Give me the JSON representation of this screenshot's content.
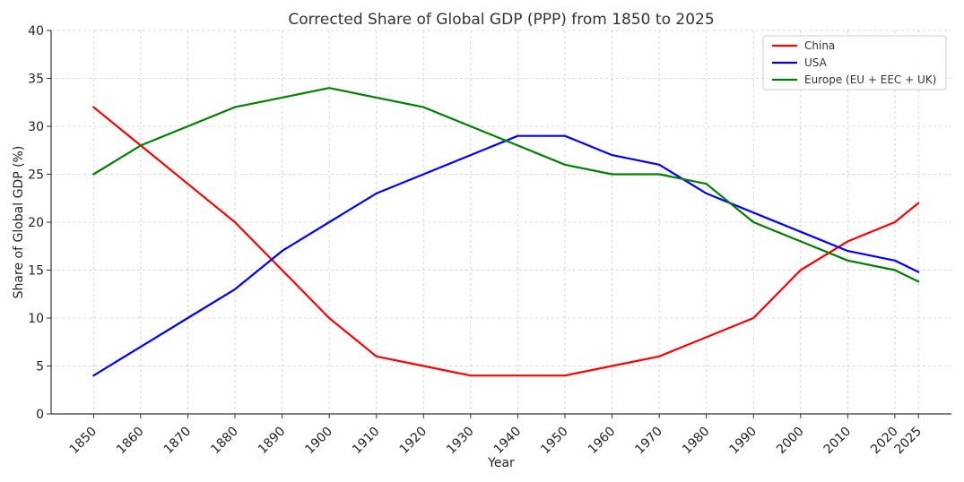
{
  "chart_data": {
    "type": "line",
    "title": "Corrected Share of Global GDP (PPP) from 1850 to 2025",
    "xlabel": "Year",
    "ylabel": "Share of Global GDP (%)",
    "x": [
      1850,
      1860,
      1870,
      1880,
      1890,
      1900,
      1910,
      1920,
      1930,
      1940,
      1950,
      1960,
      1970,
      1980,
      1990,
      2000,
      2010,
      2020,
      2025
    ],
    "x_tick_labels": [
      "1850",
      "1860",
      "1870",
      "1880",
      "1890",
      "1900",
      "1910",
      "1920",
      "1930",
      "1940",
      "1950",
      "1960",
      "1970",
      "1980",
      "1990",
      "2000",
      "2010",
      "2020",
      "2025"
    ],
    "ylim": [
      0,
      40
    ],
    "y_ticks": [
      0,
      5,
      10,
      15,
      20,
      25,
      30,
      35,
      40
    ],
    "grid": true,
    "legend_position": "top-right",
    "series": [
      {
        "name": "China",
        "color": "#ff0000",
        "values": [
          32,
          28,
          24,
          20,
          15,
          10,
          6,
          5,
          4,
          4,
          4,
          5,
          6,
          8,
          10,
          15,
          18,
          20,
          22
        ]
      },
      {
        "name": "USA",
        "color": "#0000ff",
        "values": [
          4,
          7,
          10,
          13,
          17,
          20,
          23,
          25,
          27,
          29,
          29,
          27,
          26,
          23,
          21,
          19,
          17,
          16,
          14.8
        ]
      },
      {
        "name": "Europe (EU + EEC + UK)",
        "color": "#008000",
        "values": [
          25,
          28,
          30,
          32,
          33,
          34,
          33,
          32,
          30,
          28,
          26,
          25,
          25,
          24,
          20,
          18,
          16,
          15,
          13.8
        ]
      }
    ]
  }
}
